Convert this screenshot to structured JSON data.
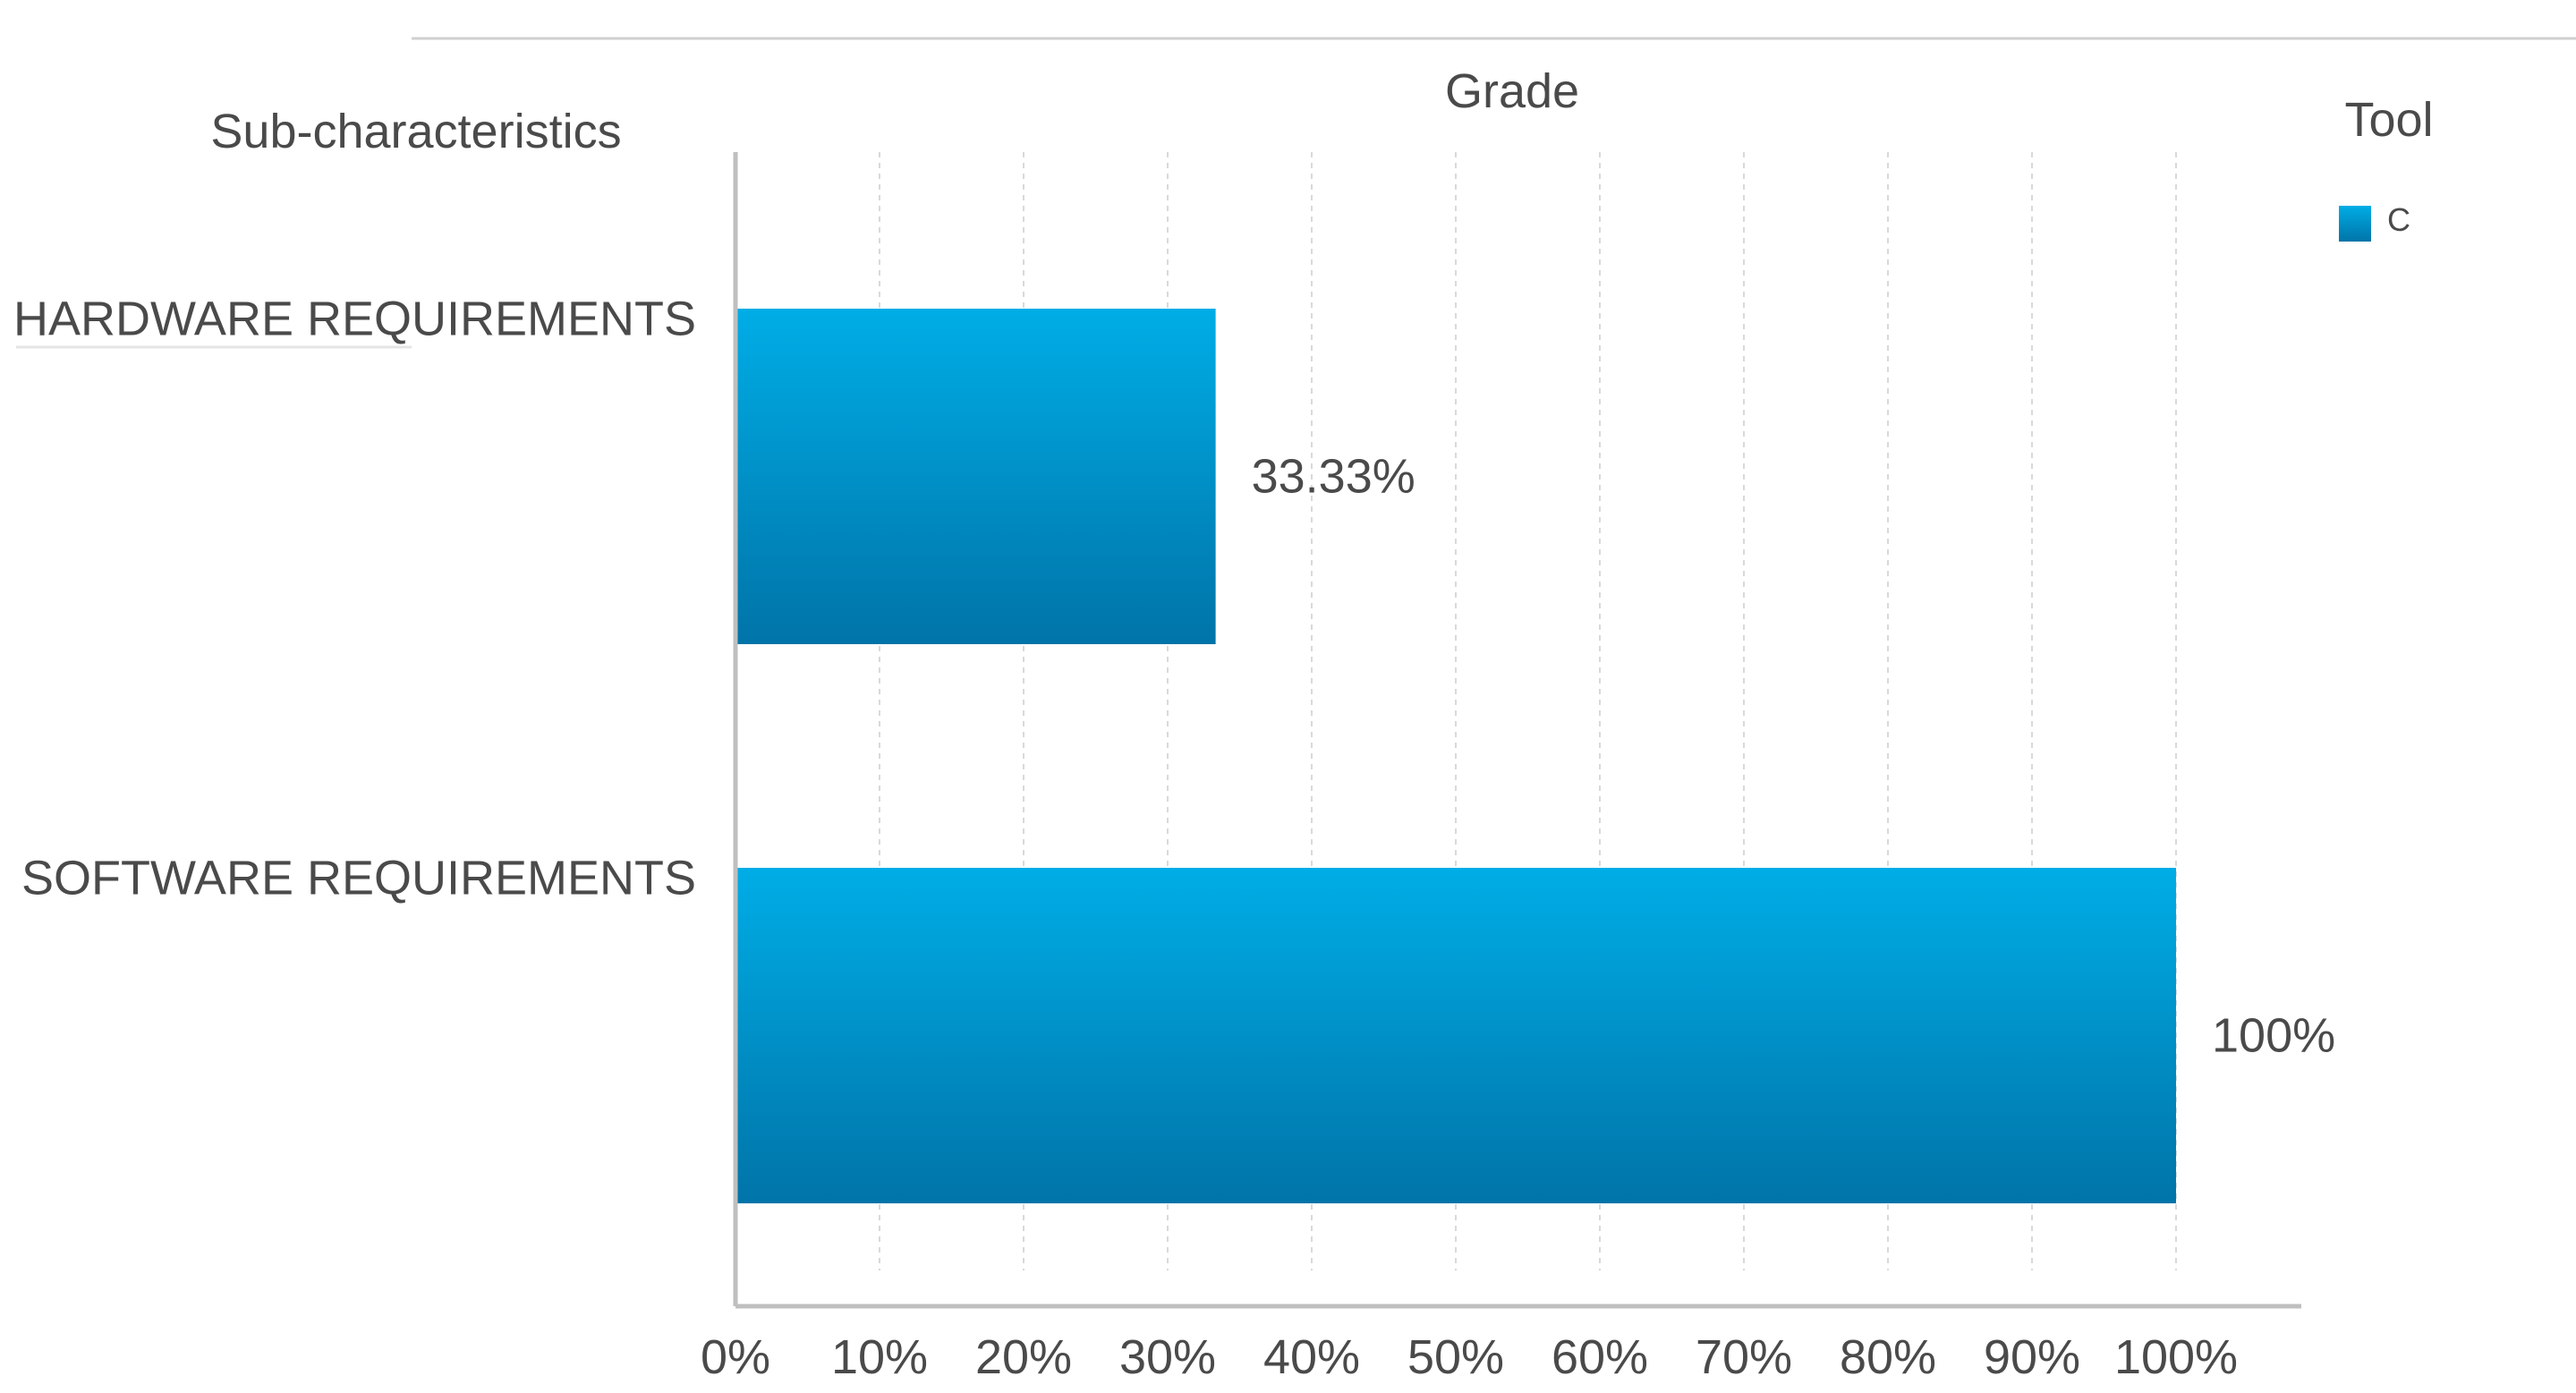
{
  "chart_data": {
    "type": "bar",
    "orientation": "horizontal",
    "title": "Grade",
    "category_header": "Sub-characteristics",
    "categories": [
      "HARDWARE REQUIREMENTS",
      "SOFTWARE REQUIREMENTS"
    ],
    "series": [
      {
        "name": "C",
        "values": [
          33.33,
          100
        ],
        "value_labels": [
          "33.33%",
          "100%"
        ],
        "color": "#0093cc"
      }
    ],
    "xlim": [
      0,
      100
    ],
    "x_ticks": [
      "0%",
      "10%",
      "20%",
      "30%",
      "40%",
      "50%",
      "60%",
      "70%",
      "80%",
      "90%",
      "100%"
    ],
    "grid": true,
    "legend": {
      "title": "Tool",
      "placement": "top-right"
    }
  }
}
